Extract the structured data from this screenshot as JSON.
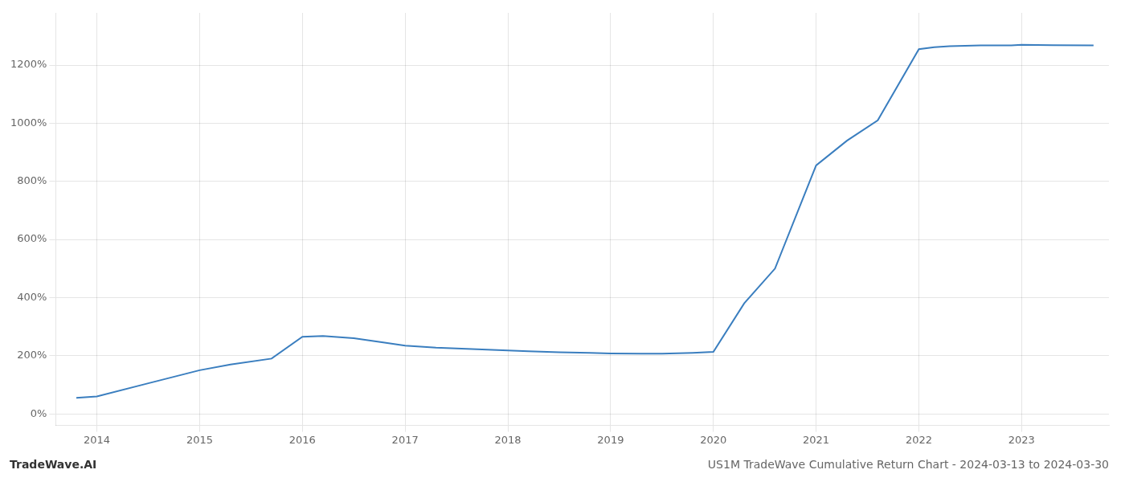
{
  "chart_data": {
    "type": "line",
    "title": "US1M TradeWave Cumulative Return Chart - 2024-03-13 to 2024-03-30",
    "annotations": [
      "TradeWave.AI"
    ],
    "x": [
      2013.8,
      2014.0,
      2014.5,
      2015.0,
      2015.3,
      2015.7,
      2016.0,
      2016.2,
      2016.5,
      2016.8,
      2017.0,
      2017.3,
      2017.7,
      2018.0,
      2018.2,
      2018.5,
      2018.8,
      2019.0,
      2019.3,
      2019.5,
      2019.8,
      2020.0,
      2020.3,
      2020.6,
      2021.0,
      2021.3,
      2021.6,
      2022.0,
      2022.15,
      2022.3,
      2022.6,
      2022.9,
      2023.0,
      2023.3,
      2023.7
    ],
    "values": [
      55,
      60,
      105,
      150,
      170,
      190,
      265,
      268,
      260,
      245,
      235,
      228,
      222,
      218,
      215,
      212,
      210,
      208,
      207,
      207,
      210,
      213,
      380,
      500,
      855,
      940,
      1010,
      1255,
      1262,
      1265,
      1268,
      1268,
      1270,
      1269,
      1268
    ],
    "color": "#3a7ebf",
    "xlim": [
      2013.6,
      2023.85
    ],
    "xticks": [
      2014,
      2015,
      2016,
      2017,
      2018,
      2019,
      2020,
      2021,
      2022,
      2023
    ],
    "ylim": [
      -40,
      1380
    ],
    "yticks": [
      {
        "value": 0,
        "label": "0%"
      },
      {
        "value": 200,
        "label": "200%"
      },
      {
        "value": 400,
        "label": "400%"
      },
      {
        "value": 600,
        "label": "600%"
      },
      {
        "value": 800,
        "label": "800%"
      },
      {
        "value": 1000,
        "label": "1000%"
      },
      {
        "value": 1200,
        "label": "1200%"
      }
    ],
    "grid": true
  }
}
